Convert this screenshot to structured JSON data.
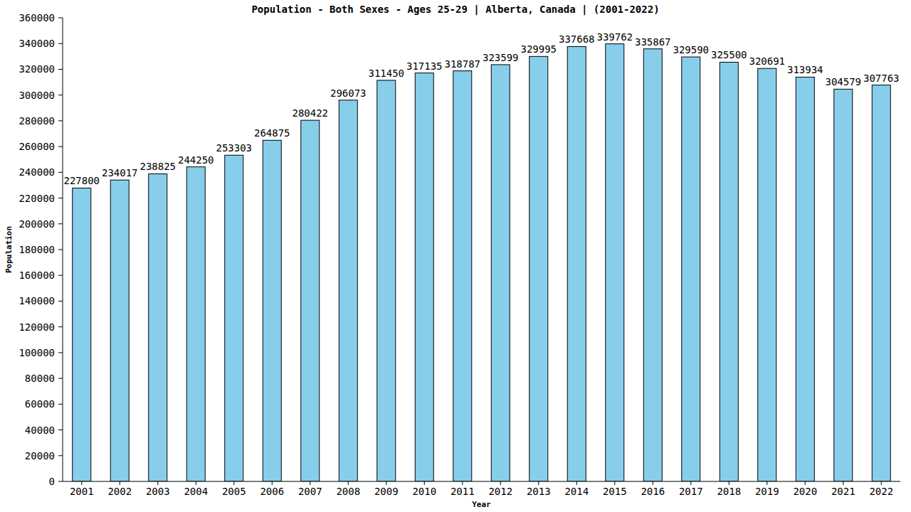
{
  "chart_data": {
    "type": "bar",
    "title": "Population - Both Sexes - Ages 25-29 | Alberta, Canada |  (2001-2022)",
    "x_label": "Year",
    "y_label": "Population",
    "categories": [
      "2001",
      "2002",
      "2003",
      "2004",
      "2005",
      "2006",
      "2007",
      "2008",
      "2009",
      "2010",
      "2011",
      "2012",
      "2013",
      "2014",
      "2015",
      "2016",
      "2017",
      "2018",
      "2019",
      "2020",
      "2021",
      "2022"
    ],
    "values": [
      227800,
      234017,
      238825,
      244250,
      253303,
      264875,
      280422,
      296073,
      311450,
      317135,
      318787,
      323599,
      329995,
      337668,
      339762,
      335867,
      329590,
      325500,
      320691,
      313934,
      304579,
      307763
    ],
    "color": "#87ceeb",
    "ylim": [
      0,
      360000
    ],
    "yticks": [
      0,
      20000,
      40000,
      60000,
      80000,
      100000,
      120000,
      140000,
      160000,
      180000,
      200000,
      220000,
      240000,
      260000,
      280000,
      300000,
      320000,
      340000,
      360000
    ],
    "grid": false,
    "data_labels": true
  }
}
